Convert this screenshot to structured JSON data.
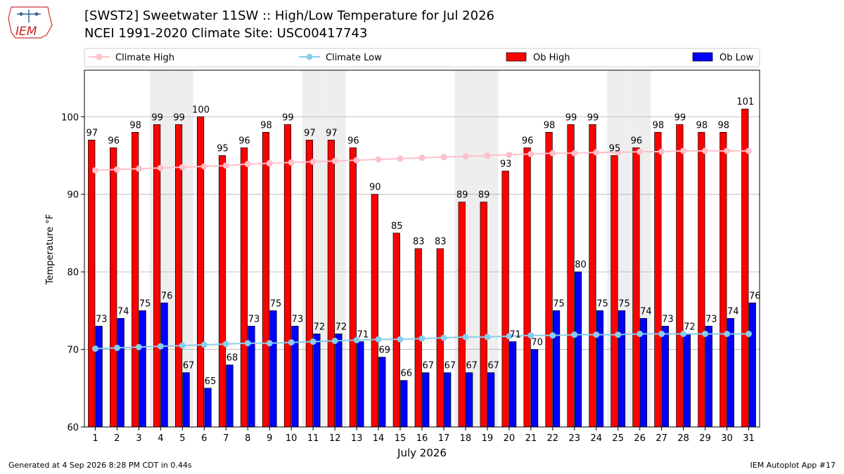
{
  "header": {
    "title_line1": "[SWST2] Sweetwater 11SW :: High/Low Temperature for Jul 2026",
    "title_line2": "NCEI 1991-2020 Climate Site: USC00417743",
    "logo_text": "IEM"
  },
  "footer": {
    "left": "Generated at 4 Sep 2026 8:28 PM CDT in 0.44s",
    "right": "IEM Autoplot App #17"
  },
  "chart_data": {
    "type": "bar",
    "xlabel": "July 2026",
    "ylabel": "Temperature °F",
    "ylim": [
      60,
      106
    ],
    "yticks": [
      60,
      70,
      80,
      90,
      100
    ],
    "grid": true,
    "legend_position": "top",
    "categories": [
      "1",
      "2",
      "3",
      "4",
      "5",
      "6",
      "7",
      "8",
      "9",
      "10",
      "11",
      "12",
      "13",
      "14",
      "15",
      "16",
      "17",
      "18",
      "19",
      "20",
      "21",
      "22",
      "23",
      "24",
      "25",
      "26",
      "27",
      "28",
      "29",
      "30",
      "31"
    ],
    "weekend_shaded_days": [
      4,
      5,
      11,
      12,
      18,
      19,
      25,
      26
    ],
    "series": [
      {
        "name": "Climate High",
        "kind": "line",
        "color": "#ffc0cb",
        "values": [
          93.1,
          93.2,
          93.3,
          93.4,
          93.5,
          93.6,
          93.7,
          93.9,
          94.0,
          94.1,
          94.2,
          94.3,
          94.4,
          94.5,
          94.6,
          94.7,
          94.8,
          94.9,
          95.0,
          95.1,
          95.2,
          95.3,
          95.3,
          95.4,
          95.4,
          95.5,
          95.5,
          95.6,
          95.6,
          95.6,
          95.6
        ]
      },
      {
        "name": "Climate Low",
        "kind": "line",
        "color": "#87ceeb",
        "values": [
          70.1,
          70.2,
          70.3,
          70.4,
          70.5,
          70.6,
          70.7,
          70.8,
          70.8,
          70.9,
          71.0,
          71.1,
          71.2,
          71.3,
          71.3,
          71.4,
          71.5,
          71.6,
          71.6,
          71.7,
          71.8,
          71.8,
          71.9,
          71.9,
          71.9,
          72.0,
          72.0,
          72.0,
          72.0,
          72.0,
          72.0
        ]
      },
      {
        "name": "Ob High",
        "kind": "bar",
        "color": "#ff0000",
        "values": [
          97,
          96,
          98,
          99,
          99,
          100,
          95,
          96,
          98,
          99,
          97,
          97,
          96,
          90,
          85,
          83,
          83,
          89,
          89,
          93,
          96,
          98,
          99,
          99,
          95,
          96,
          98,
          99,
          98,
          98,
          101
        ]
      },
      {
        "name": "Ob Low",
        "kind": "bar",
        "color": "#0000ff",
        "values": [
          73,
          74,
          75,
          76,
          67,
          65,
          68,
          73,
          75,
          73,
          72,
          72,
          71,
          69,
          66,
          67,
          67,
          67,
          67,
          71,
          70,
          75,
          80,
          75,
          75,
          74,
          73,
          72,
          73,
          74,
          76
        ]
      }
    ]
  }
}
